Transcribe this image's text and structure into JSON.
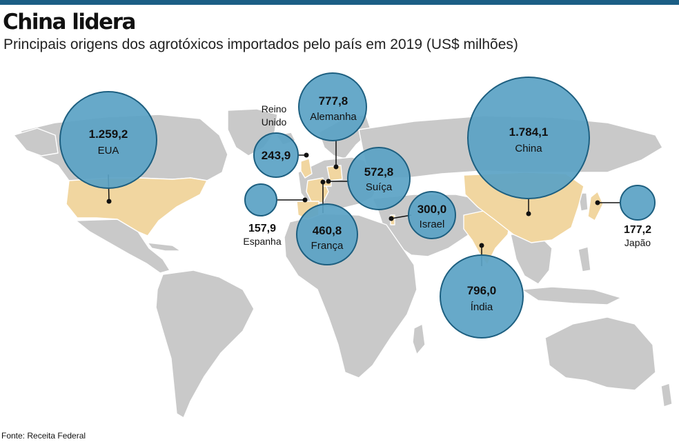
{
  "title": "China lidera",
  "subtitle": "Principais origens dos agrotóxicos importados pelo país em 2019 (US$ milhões)",
  "source": "Fonte: Receita Federal",
  "colors": {
    "bar": "#1b5e85",
    "bubble_fill": "#5aa2c4",
    "bubble_stroke": "#1d5f80",
    "highlight_land": "#f1d6a0",
    "land": "#c9c9c9",
    "border": "#ffffff"
  },
  "countries": [
    {
      "id": "eua",
      "name": "EUA",
      "value": "1.259,2"
    },
    {
      "id": "alemanha",
      "name": "Alemanha",
      "value": "777,8"
    },
    {
      "id": "reino-unido",
      "name": "Reino Unido",
      "name_lines": [
        "Reino",
        "Unido"
      ],
      "value": "243,9"
    },
    {
      "id": "suica",
      "name": "Suíça",
      "value": "572,8"
    },
    {
      "id": "espanha",
      "name": "Espanha",
      "value": "157,9"
    },
    {
      "id": "franca",
      "name": "França",
      "value": "460,8"
    },
    {
      "id": "israel",
      "name": "Israel",
      "value": "300,0"
    },
    {
      "id": "china",
      "name": "China",
      "value": "1.784,1"
    },
    {
      "id": "japao",
      "name": "Japão",
      "value": "177,2"
    },
    {
      "id": "india",
      "name": "Índia",
      "value": "796,0"
    }
  ]
}
